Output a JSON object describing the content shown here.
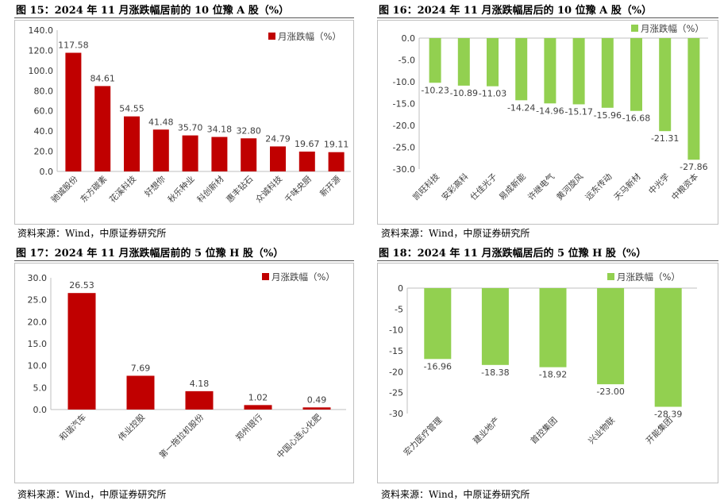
{
  "panels": [
    {
      "title": "图 15：2024 年 11 月涨跌幅居前的 10 位豫 A 股（%）",
      "source": "资料来源：Wind，中原证券研究所"
    },
    {
      "title": "图 16：2024 年 11 月涨跌幅居后的 10 位豫 A 股（%）",
      "source": "资料来源：Wind，中原证券研究所"
    },
    {
      "title": "图 17：2024 年 11 月涨跌幅居前的 5 位豫 H 股（%）",
      "source": "资料来源：Wind，中原证券研究所"
    },
    {
      "title": "图 18：2024 年 11 月涨跌幅居后的 5 位豫 H 股（%）",
      "source": "资料来源：Wind，中原证券研究所"
    }
  ],
  "chart_data": [
    {
      "type": "bar",
      "legend": "月涨跌幅（%）",
      "legend_position": "top-right",
      "color": "#C00000",
      "categories": [
        "驰诚股份",
        "东方碳素",
        "花溪科技",
        "好想你",
        "秋乐种业",
        "科创新材",
        "惠丰钻石",
        "众诚科技",
        "千味央厨",
        "新开源"
      ],
      "values": [
        117.58,
        84.61,
        54.55,
        41.48,
        35.7,
        34.18,
        32.8,
        24.79,
        19.67,
        19.11
      ],
      "value_labels": [
        "117.58",
        "84.61",
        "54.55",
        "41.48",
        "35.70",
        "34.18",
        "32.80",
        "24.79",
        "19.67",
        "19.11"
      ],
      "ylim": [
        0,
        140
      ],
      "yticks": [
        "0.0",
        "20.0",
        "40.0",
        "60.0",
        "80.0",
        "100.0",
        "120.0",
        "140.0"
      ],
      "grid": false
    },
    {
      "type": "bar",
      "legend": "月涨跌幅（%）",
      "legend_position": "top-right",
      "color": "#92D050",
      "categories": [
        "凯旺科技",
        "安彩高科",
        "仕佳光子",
        "易成新能",
        "许继电气",
        "黄河旋风",
        "远东传动",
        "天马新材",
        "中光学",
        "中粮资本"
      ],
      "values": [
        -10.23,
        -10.89,
        -11.03,
        -14.24,
        -14.96,
        -15.17,
        -15.96,
        -16.68,
        -21.31,
        -27.86
      ],
      "value_labels": [
        "-10.23",
        "-10.89",
        "-11.03",
        "-14.24",
        "-14.96",
        "-15.17",
        "-15.96",
        "-16.68",
        "-21.31",
        "-27.86"
      ],
      "ylim": [
        -30,
        0
      ],
      "yticks": [
        "-30.0",
        "-25.0",
        "-20.0",
        "-15.0",
        "-10.0",
        "-5.0",
        "0.0"
      ],
      "grid": false
    },
    {
      "type": "bar",
      "legend": "月涨跌幅（%）",
      "legend_position": "top-right",
      "color": "#C00000",
      "categories": [
        "和谐汽车",
        "伟业控股",
        "第一拖拉机股份",
        "郑州银行",
        "中国心连心化肥"
      ],
      "values": [
        26.53,
        7.69,
        4.18,
        1.02,
        0.49
      ],
      "value_labels": [
        "26.53",
        "7.69",
        "4.18",
        "1.02",
        "0.49"
      ],
      "ylim": [
        0,
        30
      ],
      "yticks": [
        "0.0",
        "5.0",
        "10.0",
        "15.0",
        "20.0",
        "25.0",
        "30.0"
      ],
      "grid": false
    },
    {
      "type": "bar",
      "legend": "月涨跌幅（%）",
      "legend_position": "top-right",
      "color": "#92D050",
      "categories": [
        "宏力医疗管理",
        "建业地产",
        "首控集团",
        "兴业物联",
        "开能集团"
      ],
      "values": [
        -16.96,
        -18.38,
        -18.92,
        -23.0,
        -28.39
      ],
      "value_labels": [
        "-16.96",
        "-18.38",
        "-18.92",
        "-23.00",
        "-28.39"
      ],
      "ylim": [
        -30,
        0
      ],
      "yticks": [
        "-30",
        "-25",
        "-20",
        "-15",
        "-10",
        "-5",
        "0"
      ],
      "grid": false
    }
  ]
}
